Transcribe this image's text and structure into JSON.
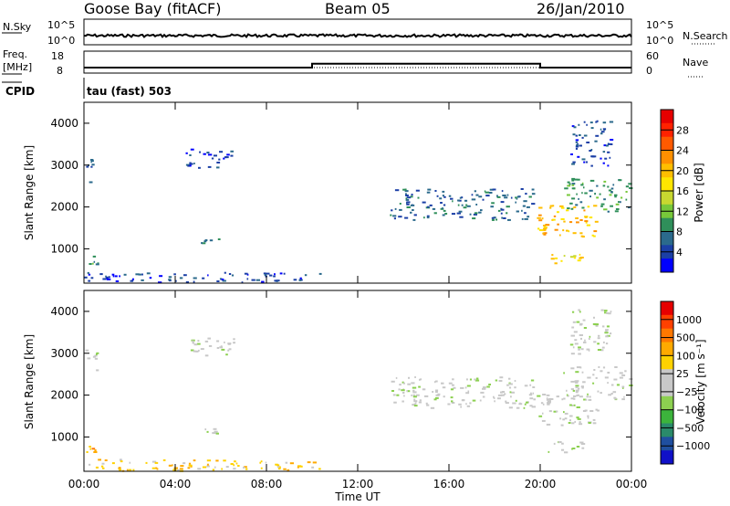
{
  "header": {
    "station": "Goose Bay (fitACF)",
    "beam": "Beam 05",
    "date": "26/Jan/2010"
  },
  "noise_panel": {
    "left_label": "N.Sky",
    "left_ticks": [
      "10^5",
      "10^0"
    ],
    "right_label": "N.Search",
    "right_ticks": [
      "10^5",
      "10^0"
    ]
  },
  "freq_panel": {
    "left_label_1": "Freq.",
    "left_label_2": "[MHz]",
    "left_ticks": [
      "18",
      "8"
    ],
    "right_label": "Nave",
    "right_ticks": [
      "60",
      "0"
    ]
  },
  "cpid": {
    "label": "CPID",
    "value": "tau (fast) 503"
  },
  "time_axis": {
    "label": "Time UT",
    "ticks": [
      "00:00",
      "04:00",
      "08:00",
      "12:00",
      "16:00",
      "20:00",
      "00:00"
    ]
  },
  "chart_data": [
    {
      "type": "line",
      "name": "noise",
      "series": [
        {
          "name": "N.Sky",
          "style": "noisy flat line near top of log scale"
        },
        {
          "name": "N.Search",
          "style": "dotted flat line"
        }
      ],
      "x_range_hours": [
        0,
        24
      ]
    },
    {
      "type": "line",
      "name": "frequency-nave",
      "series": [
        {
          "name": "Freq.",
          "step": [
            [
              0,
              10.5
            ],
            [
              10,
              10.5
            ],
            [
              10,
              12.3
            ],
            [
              20,
              12.3
            ],
            [
              20,
              10.5
            ],
            [
              24,
              10.5
            ]
          ]
        },
        {
          "name": "Nave",
          "style": "dotted line near 10"
        }
      ],
      "ylim": [
        8,
        18
      ]
    },
    {
      "type": "heatmap",
      "name": "power",
      "ylabel": "Slant Range [km]",
      "yticks": [
        1000,
        2000,
        3000,
        4000
      ],
      "ylim": [
        180,
        4500
      ],
      "xlim_hours": [
        0,
        24
      ],
      "colorbar": {
        "label": "Power [dB]",
        "ticks": [
          "4",
          "8",
          "12",
          "16",
          "20",
          "24",
          "28"
        ],
        "colors": [
          "#0000ff",
          "#1b3fa6",
          "#2b6a8c",
          "#2f8f5a",
          "#77c83a",
          "#c8d830",
          "#ffe600",
          "#ffbe00",
          "#ff9000",
          "#ff5a00",
          "#ff2200",
          "#e60000"
        ]
      },
      "regions": [
        {
          "hours": [
            0.05,
            0.55
          ],
          "range_km": [
            2600,
            3150
          ],
          "level": 2
        },
        {
          "hours": [
            0.05,
            0.6
          ],
          "range_km": [
            650,
            850
          ],
          "level": 3
        },
        {
          "hours": [
            0,
            10.4
          ],
          "range_km": [
            200,
            450
          ],
          "level": 1
        },
        {
          "hours": [
            4.4,
            6.6
          ],
          "range_km": [
            2950,
            3400
          ],
          "level": 1
        },
        {
          "hours": [
            5.1,
            5.9
          ],
          "range_km": [
            1100,
            1250
          ],
          "level": 2
        },
        {
          "hours": [
            13.4,
            19.7
          ],
          "range_km": [
            1700,
            2450
          ],
          "level": 2
        },
        {
          "hours": [
            19.8,
            22.5
          ],
          "range_km": [
            1300,
            2050
          ],
          "level": 7
        },
        {
          "hours": [
            20.2,
            22.0
          ],
          "range_km": [
            650,
            900
          ],
          "level": 6
        },
        {
          "hours": [
            21.0,
            23.9
          ],
          "range_km": [
            1900,
            2700
          ],
          "level": 3
        },
        {
          "hours": [
            21.3,
            23.1
          ],
          "range_km": [
            3000,
            4100
          ],
          "level": 1
        }
      ]
    },
    {
      "type": "heatmap",
      "name": "velocity",
      "ylabel": "Slant Range [km]",
      "yticks": [
        1000,
        2000,
        3000,
        4000
      ],
      "ylim": [
        180,
        4500
      ],
      "xlim_hours": [
        0,
        24
      ],
      "colorbar": {
        "label": "Velocity [m s⁻¹]",
        "ticks": [
          "1000",
          "500",
          "100",
          "25",
          "−25",
          "−100",
          "−500",
          "−1000"
        ],
        "colors": [
          "#1010c8",
          "#1f4fa0",
          "#2a8a6a",
          "#3cb43c",
          "#8cd050",
          "#c8c8c8",
          "#c8c8c8",
          "#ffd200",
          "#ffaa00",
          "#ff7800",
          "#ff4000",
          "#e60000"
        ]
      },
      "regions": [
        {
          "hours": [
            0.05,
            0.55
          ],
          "range_km": [
            2600,
            3150
          ],
          "level": 5
        },
        {
          "hours": [
            0.05,
            0.6
          ],
          "range_km": [
            650,
            850
          ],
          "level": 8
        },
        {
          "hours": [
            0,
            10.4
          ],
          "range_km": [
            200,
            480
          ],
          "level": 7
        },
        {
          "hours": [
            4.4,
            6.6
          ],
          "range_km": [
            2950,
            3400
          ],
          "level": 5
        },
        {
          "hours": [
            5.1,
            5.9
          ],
          "range_km": [
            1100,
            1250
          ],
          "level": 5
        },
        {
          "hours": [
            13.4,
            19.7
          ],
          "range_km": [
            1700,
            2450
          ],
          "level": 5
        },
        {
          "hours": [
            19.8,
            22.5
          ],
          "range_km": [
            1300,
            2050
          ],
          "level": 5
        },
        {
          "hours": [
            20.2,
            22.0
          ],
          "range_km": [
            650,
            900
          ],
          "level": 5
        },
        {
          "hours": [
            21.0,
            23.9
          ],
          "range_km": [
            1900,
            2700
          ],
          "level": 5
        },
        {
          "hours": [
            21.3,
            23.1
          ],
          "range_km": [
            3000,
            4100
          ],
          "level": 5
        }
      ]
    }
  ]
}
